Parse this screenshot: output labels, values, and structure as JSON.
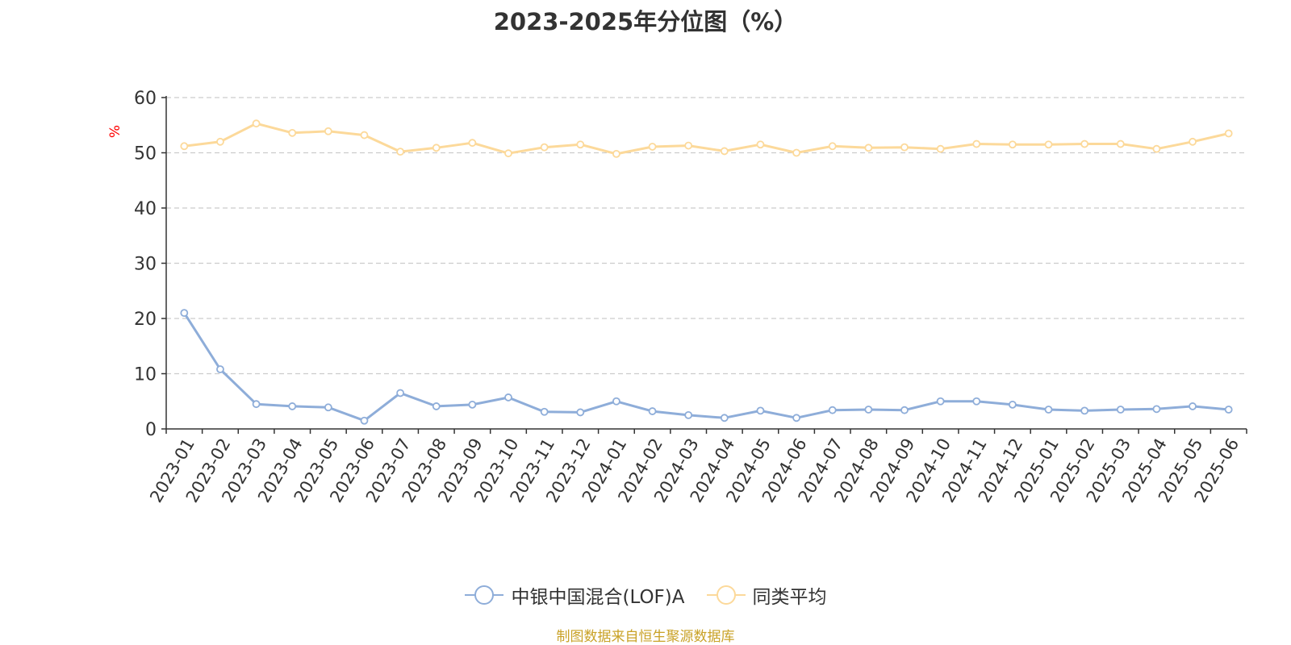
{
  "source_note": "制图数据来自恒生聚源数据库",
  "colors": {
    "fund": "#8eadd9",
    "average": "#fcd99a",
    "axis": "#333333",
    "grid": "#cccccc",
    "unit": "#ff0000",
    "source": "#c9a227",
    "title": "#333333"
  },
  "chart_data": {
    "type": "line",
    "title": "2023-2025年分位图（%）",
    "ylabel": "%",
    "xlabel": "",
    "ylim": [
      0,
      60
    ],
    "yticks": [
      "0",
      "10",
      "20",
      "30",
      "40",
      "50",
      "60"
    ],
    "grid": "horizontal-dashed",
    "legend_position": "bottom-center",
    "categories": [
      "2023-01",
      "2023-02",
      "2023-03",
      "2023-04",
      "2023-05",
      "2023-06",
      "2023-07",
      "2023-08",
      "2023-09",
      "2023-10",
      "2023-11",
      "2023-12",
      "2024-01",
      "2024-02",
      "2024-03",
      "2024-04",
      "2024-05",
      "2024-06",
      "2024-07",
      "2024-08",
      "2024-09",
      "2024-10",
      "2024-11",
      "2024-12",
      "2025-01",
      "2025-02",
      "2025-03",
      "2025-04",
      "2025-05",
      "2025-06"
    ],
    "series": [
      {
        "name": "中银中国混合(LOF)A",
        "values": [
          21.0,
          10.8,
          4.5,
          4.1,
          3.9,
          1.5,
          6.5,
          4.1,
          4.4,
          5.7,
          3.1,
          3.0,
          5.0,
          3.2,
          2.5,
          2.0,
          3.3,
          2.0,
          3.4,
          3.5,
          3.4,
          5.0,
          5.0,
          4.4,
          3.5,
          3.3,
          3.5,
          3.6,
          4.1,
          3.5
        ]
      },
      {
        "name": "同类平均",
        "values": [
          51.2,
          52.0,
          55.3,
          53.6,
          53.9,
          53.2,
          50.2,
          50.9,
          51.8,
          49.9,
          51.0,
          51.5,
          49.8,
          51.1,
          51.3,
          50.3,
          51.5,
          50.0,
          51.2,
          50.9,
          51.0,
          50.7,
          51.6,
          51.5,
          51.5,
          51.6,
          51.6,
          50.7,
          52.0,
          53.5
        ]
      }
    ]
  }
}
